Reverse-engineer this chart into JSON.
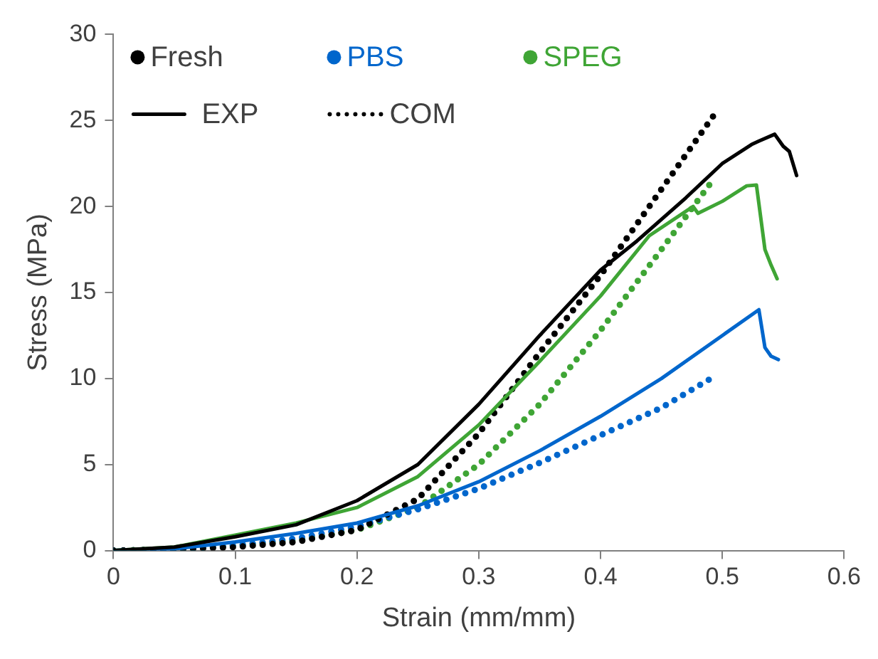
{
  "chart_data": {
    "type": "line",
    "xlabel": "Strain (mm/mm)",
    "ylabel": "Stress (MPa)",
    "xlim": [
      0,
      0.6
    ],
    "xticks": [
      0,
      0.1,
      0.2,
      0.3,
      0.4,
      0.5,
      0.6
    ],
    "ylim": [
      0,
      30
    ],
    "yticks": [
      0,
      5,
      10,
      15,
      20,
      25,
      30
    ],
    "grid": false,
    "legend": "top left",
    "marker": "none",
    "annotations": [
      "EXP",
      "COM"
    ],
    "series": [
      {
        "name": "Fresh",
        "color": "#000000",
        "line_style": "solid",
        "x": [
          0,
          0.05,
          0.1,
          0.15,
          0.2,
          0.25,
          0.3,
          0.35,
          0.4,
          0.43,
          0.47,
          0.5,
          0.524,
          0.53,
          0.543,
          0.55,
          0.555,
          0.561
        ],
        "values": [
          0,
          0.2,
          0.8,
          1.5,
          2.9,
          5,
          8.5,
          12.5,
          16.3,
          18,
          20.5,
          22.5,
          23.6,
          23.8,
          24.2,
          23.5,
          23.2,
          21.8
        ]
      },
      {
        "name": "PBS",
        "color": "#0066cc",
        "line_style": "solid",
        "x": [
          0,
          0.05,
          0.1,
          0.15,
          0.2,
          0.25,
          0.3,
          0.35,
          0.4,
          0.45,
          0.5,
          0.53,
          0.535,
          0.54,
          0.546
        ],
        "values": [
          0,
          0.1,
          0.5,
          1,
          1.6,
          2.6,
          4,
          5.8,
          7.8,
          10,
          12.5,
          14,
          11.8,
          11.3,
          11.1
        ]
      },
      {
        "name": "SPEG",
        "color": "#3fa535",
        "line_style": "solid",
        "x": [
          0,
          0.05,
          0.1,
          0.15,
          0.2,
          0.25,
          0.3,
          0.35,
          0.4,
          0.44,
          0.476,
          0.48,
          0.5,
          0.52,
          0.528,
          0.535,
          0.54,
          0.545
        ],
        "values": [
          0,
          0.2,
          0.9,
          1.6,
          2.5,
          4.3,
          7.3,
          11,
          14.8,
          18.3,
          20,
          19.6,
          20.3,
          21.2,
          21.25,
          17.5,
          16.6,
          15.8
        ]
      },
      {
        "color": "#000000",
        "line_style": "dotted",
        "x": [
          0,
          0.05,
          0.1,
          0.15,
          0.2,
          0.25,
          0.3,
          0.35,
          0.4,
          0.45,
          0.495
        ],
        "values": [
          0,
          0.05,
          0.2,
          0.5,
          1.2,
          3,
          6.8,
          11.5,
          16,
          21,
          25.5
        ]
      },
      {
        "color": "#0066cc",
        "line_style": "dotted",
        "x": [
          0,
          0.05,
          0.1,
          0.15,
          0.2,
          0.25,
          0.3,
          0.35,
          0.4,
          0.45,
          0.493
        ],
        "values": [
          0,
          0.05,
          0.3,
          0.7,
          1.4,
          2.4,
          3.6,
          5.1,
          6.7,
          8.3,
          10.1
        ]
      },
      {
        "color": "#3fa535",
        "line_style": "dotted",
        "x": [
          0,
          0.05,
          0.1,
          0.15,
          0.2,
          0.25,
          0.3,
          0.35,
          0.4,
          0.45,
          0.494
        ],
        "values": [
          0,
          0.05,
          0.3,
          0.6,
          1.2,
          2.5,
          5,
          8.5,
          12.8,
          17.5,
          21.7
        ]
      }
    ]
  }
}
